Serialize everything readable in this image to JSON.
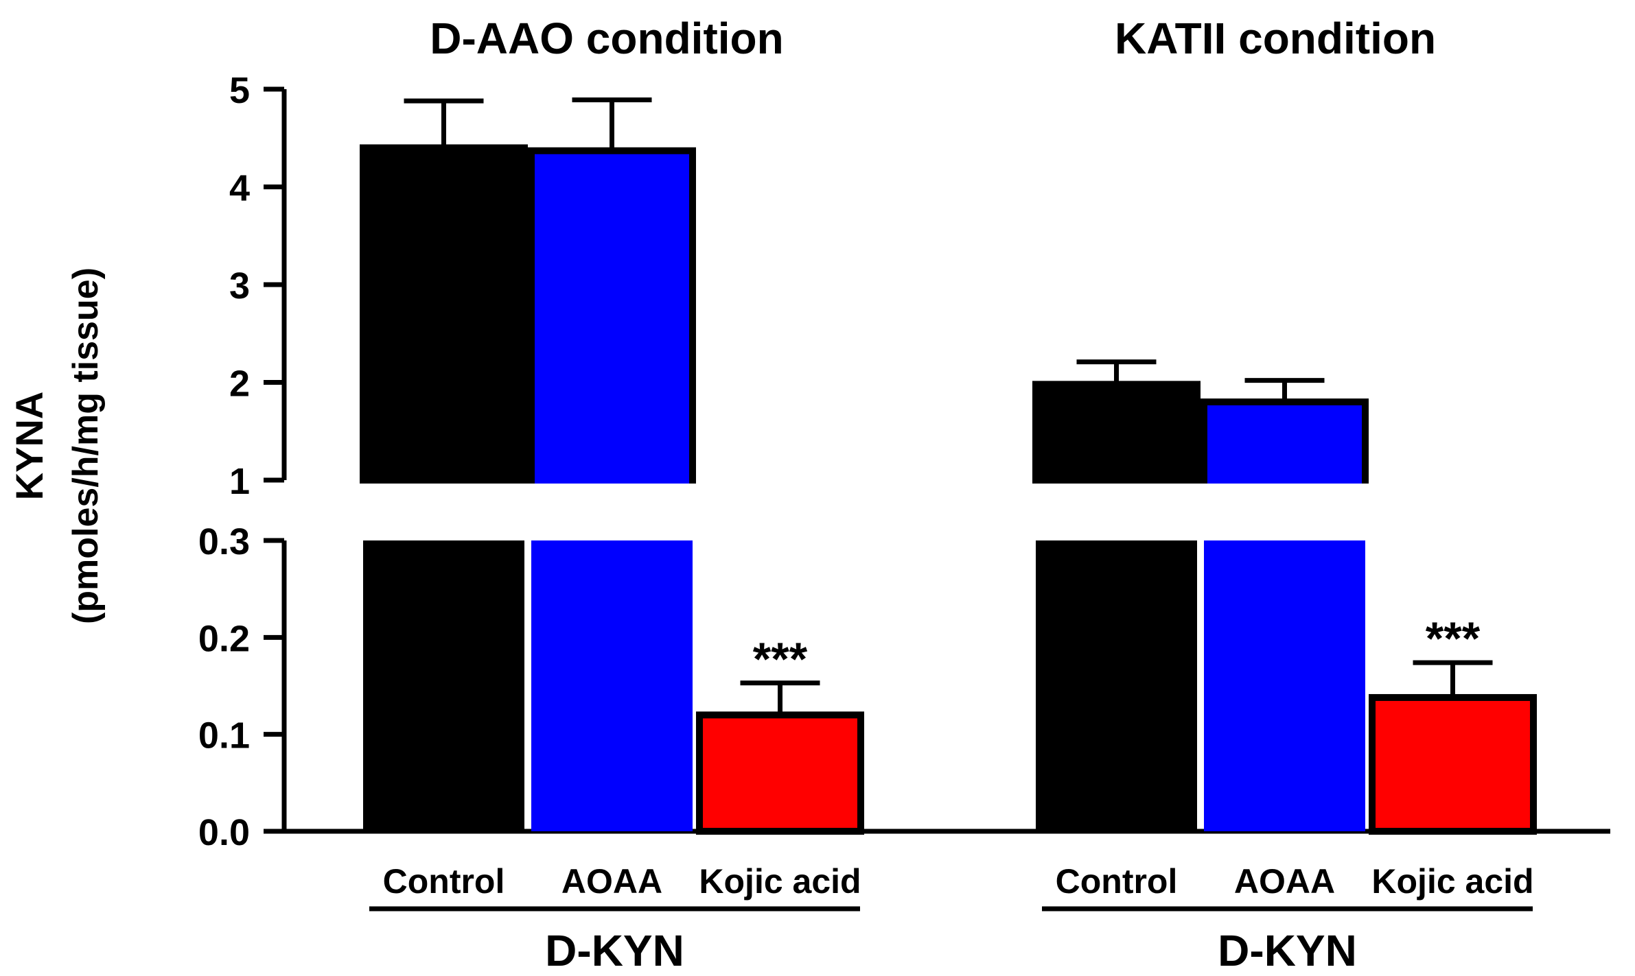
{
  "chart_data": {
    "type": "bar",
    "ylabel_line1": "KYNA",
    "ylabel_line2": "(pmoles/h/mg tissue)",
    "axis_break": true,
    "upper_ticks": [
      "1",
      "2",
      "3",
      "4",
      "5"
    ],
    "lower_ticks": [
      "0.0",
      "0.1",
      "0.2",
      "0.3"
    ],
    "upper_ylim": [
      1,
      5
    ],
    "lower_ylim": [
      0,
      0.3
    ],
    "categories": [
      "Control",
      "AOAA",
      "Kojic acid"
    ],
    "group_label": "D-KYN",
    "significance_label": "***",
    "groups": [
      {
        "title": "D-AAO condition",
        "bars": [
          {
            "label": "Control",
            "value": 4.4,
            "error": 0.48,
            "color": "#000000"
          },
          {
            "label": "AOAA",
            "value": 4.37,
            "error": 0.52,
            "color": "#0000ff"
          },
          {
            "label": "Kojic acid",
            "value": 0.12,
            "error": 0.033,
            "color": "#ff0000",
            "sig": "***"
          }
        ]
      },
      {
        "title": "KATII condition",
        "bars": [
          {
            "label": "Control",
            "value": 1.98,
            "error": 0.23,
            "color": "#000000"
          },
          {
            "label": "AOAA",
            "value": 1.8,
            "error": 0.22,
            "color": "#0000ff"
          },
          {
            "label": "Kojic acid",
            "value": 0.138,
            "error": 0.036,
            "color": "#ff0000",
            "sig": "***"
          }
        ]
      }
    ]
  }
}
